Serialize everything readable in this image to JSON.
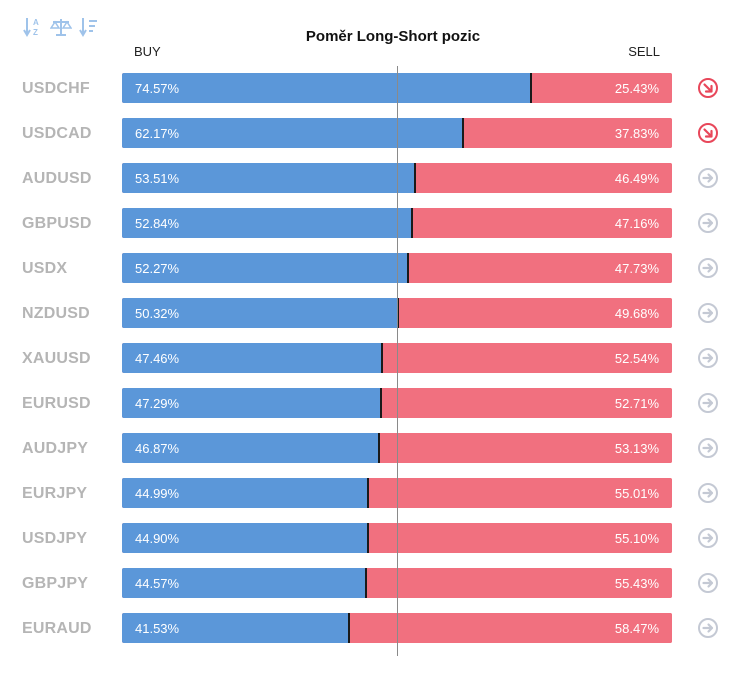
{
  "title": "Poměr Long-Short pozic",
  "labels": {
    "buy": "BUY",
    "sell": "SELL"
  },
  "toolbar": {
    "icons": [
      "sort-az-icon",
      "balance-scale-icon",
      "sort-list-icon"
    ]
  },
  "colors": {
    "buy": "#5b97d9",
    "sell": "#f1707f",
    "arrow_red": "#e8475a",
    "arrow_gray": "#c4c9d4",
    "symbol": "#b5b5b5"
  },
  "chart_data": {
    "type": "bar",
    "orientation": "horizontal-stacked",
    "categories": [
      "USDCHF",
      "USDCAD",
      "AUDUSD",
      "GBPUSD",
      "USDX",
      "NZDUSD",
      "XAUUSD",
      "EURUSD",
      "AUDJPY",
      "EURJPY",
      "USDJPY",
      "GBPJPY",
      "EURAUD"
    ],
    "series": [
      {
        "name": "BUY",
        "values": [
          74.57,
          62.17,
          53.51,
          52.84,
          52.27,
          50.32,
          47.46,
          47.29,
          46.87,
          44.99,
          44.9,
          44.57,
          41.53
        ]
      },
      {
        "name": "SELL",
        "values": [
          25.43,
          37.83,
          46.49,
          47.16,
          47.73,
          49.68,
          52.54,
          52.71,
          53.13,
          55.01,
          55.1,
          55.43,
          58.47
        ]
      }
    ],
    "buy_labels": [
      "74.57%",
      "62.17%",
      "53.51%",
      "52.84%",
      "52.27%",
      "50.32%",
      "47.46%",
      "47.29%",
      "46.87%",
      "44.99%",
      "44.90%",
      "44.57%",
      "41.53%"
    ],
    "sell_labels": [
      "25.43%",
      "37.83%",
      "46.49%",
      "47.16%",
      "47.73%",
      "49.68%",
      "52.54%",
      "52.71%",
      "53.13%",
      "55.01%",
      "55.10%",
      "55.43%",
      "58.47%"
    ],
    "trend_icons": [
      "down-right",
      "down-right",
      "right",
      "right",
      "right",
      "right",
      "right",
      "right",
      "right",
      "right",
      "right",
      "right",
      "right"
    ],
    "xlim": [
      0,
      100
    ]
  }
}
